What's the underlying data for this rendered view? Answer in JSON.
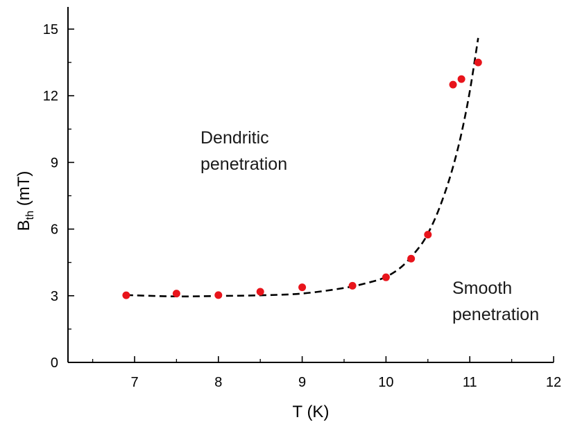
{
  "chart_data": {
    "type": "scatter",
    "xlabel": "T (K)",
    "ylabel_main": "B",
    "ylabel_sub": "th",
    "ylabel_unit": " (mT)",
    "xlim": [
      6.2,
      12
    ],
    "ylim": [
      0,
      16
    ],
    "xticks": [
      7,
      8,
      9,
      10,
      11,
      12
    ],
    "yticks": [
      0,
      3,
      6,
      9,
      12,
      15
    ],
    "grid": false,
    "points_color": "#e8141b",
    "curve_color": "#000000",
    "points": [
      {
        "x": 6.9,
        "y": 3.02
      },
      {
        "x": 7.5,
        "y": 3.1
      },
      {
        "x": 8.0,
        "y": 3.03
      },
      {
        "x": 8.5,
        "y": 3.18
      },
      {
        "x": 9.0,
        "y": 3.38
      },
      {
        "x": 9.6,
        "y": 3.45
      },
      {
        "x": 10.0,
        "y": 3.83
      },
      {
        "x": 10.3,
        "y": 4.67
      },
      {
        "x": 10.5,
        "y": 5.75
      },
      {
        "x": 10.8,
        "y": 12.5
      },
      {
        "x": 10.9,
        "y": 12.75
      },
      {
        "x": 11.1,
        "y": 13.5
      }
    ],
    "fit_curve": [
      {
        "x": 6.9,
        "y": 3.03
      },
      {
        "x": 7.5,
        "y": 2.97
      },
      {
        "x": 8.0,
        "y": 2.99
      },
      {
        "x": 8.5,
        "y": 3.02
      },
      {
        "x": 9.0,
        "y": 3.1
      },
      {
        "x": 9.5,
        "y": 3.35
      },
      {
        "x": 9.8,
        "y": 3.6
      },
      {
        "x": 10.0,
        "y": 3.85
      },
      {
        "x": 10.2,
        "y": 4.35
      },
      {
        "x": 10.4,
        "y": 5.2
      },
      {
        "x": 10.5,
        "y": 5.8
      },
      {
        "x": 10.6,
        "y": 6.6
      },
      {
        "x": 10.7,
        "y": 7.6
      },
      {
        "x": 10.8,
        "y": 8.8
      },
      {
        "x": 10.9,
        "y": 10.3
      },
      {
        "x": 11.0,
        "y": 12.2
      },
      {
        "x": 11.1,
        "y": 14.6
      }
    ],
    "annotations": [
      {
        "id": "dendritic",
        "lines": [
          "Dendritic",
          "penetration"
        ]
      },
      {
        "id": "smooth",
        "lines": [
          "Smooth",
          "penetration"
        ]
      }
    ]
  }
}
